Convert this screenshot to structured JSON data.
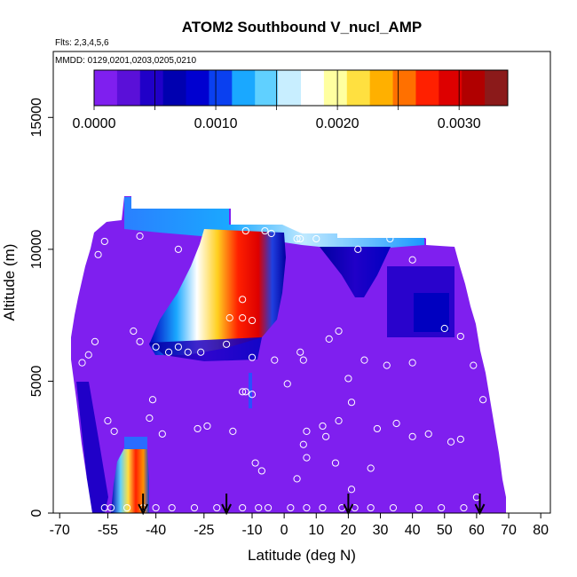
{
  "chart_data": {
    "type": "heatmap",
    "title": "ATOM2 Southbound V_nucl_AMP",
    "subtitle_flights": "Flts: 2,3,4,5,6",
    "subtitle_dates": "MMDD: 0129,0201,0203,0205,0210",
    "xlabel": "Latitude (deg N)",
    "ylabel": "Altitude (m)",
    "xlim": [
      -72,
      83
    ],
    "ylim": [
      0,
      17500
    ],
    "x_ticks": [
      -70,
      -55,
      -40,
      -25,
      -10,
      0,
      10,
      20,
      30,
      40,
      50,
      60,
      70,
      80
    ],
    "x_tick_labels": [
      "-70",
      "-55",
      "-40",
      "-25",
      "-10",
      "0",
      "10",
      "20",
      "30",
      "40",
      "50",
      "60",
      "70",
      "80"
    ],
    "y_ticks": [
      0,
      5000,
      10000,
      15000
    ],
    "y_tick_labels": [
      "0",
      "5000",
      "10000",
      "15000"
    ],
    "colorbar": {
      "min": 0.0,
      "max": 0.0034,
      "ticks": [
        0.0,
        0.001,
        0.002,
        0.003
      ],
      "tick_labels": [
        "0.0000",
        "0.0010",
        "0.0020",
        "0.0030"
      ],
      "colors": [
        "#7f1fef",
        "#5a10d8",
        "#2000c8",
        "#0000b0",
        "#0000d0",
        "#0a40f0",
        "#1aa8ff",
        "#60d0ff",
        "#c8eeff",
        "#ffffff",
        "#ffffa0",
        "#ffe040",
        "#ffb000",
        "#ff7000",
        "#ff2000",
        "#dd0000",
        "#b00000",
        "#8b1a1a"
      ]
    },
    "background_value": 2e-05,
    "features": [
      {
        "name": "southern-surface-plume",
        "x": [
          -50,
          -42
        ],
        "y": [
          0,
          2600
        ],
        "peak": 0.0031
      },
      {
        "name": "upper-tropospheric-plume",
        "x": [
          -30,
          -5
        ],
        "y": [
          6000,
          11200
        ],
        "peak": 0.0033
      },
      {
        "name": "upper-band",
        "x": [
          -42,
          45
        ],
        "y": [
          10000,
          11700
        ],
        "peak": 0.0011
      },
      {
        "name": "northern-dip",
        "x": [
          18,
          32
        ],
        "y": [
          8000,
          10500
        ],
        "peak": 0.0004
      },
      {
        "name": "northern-block",
        "x": [
          38,
          58
        ],
        "y": [
          6500,
          9500
        ],
        "peak": 0.0003
      }
    ],
    "flight_samples": [
      [
        -58,
        9800
      ],
      [
        -56,
        10300
      ],
      [
        -52,
        11600
      ],
      [
        -45,
        10500
      ],
      [
        -33,
        10000
      ],
      [
        -12,
        10700
      ],
      [
        -6,
        10700
      ],
      [
        -4,
        10600
      ],
      [
        4,
        10400
      ],
      [
        5,
        10400
      ],
      [
        10,
        10400
      ],
      [
        23,
        10000
      ],
      [
        33,
        10400
      ],
      [
        40,
        9600
      ],
      [
        45,
        10500
      ],
      [
        52,
        10300
      ],
      [
        -13,
        8100
      ],
      [
        -17,
        7400
      ],
      [
        -13,
        7400
      ],
      [
        -10,
        7300
      ],
      [
        -63,
        5700
      ],
      [
        -61,
        6000
      ],
      [
        -59,
        6500
      ],
      [
        -47,
        6900
      ],
      [
        -45,
        6500
      ],
      [
        -40,
        6300
      ],
      [
        -36,
        6100
      ],
      [
        -33,
        6300
      ],
      [
        -30,
        6100
      ],
      [
        -26,
        6100
      ],
      [
        -18,
        6400
      ],
      [
        -10,
        5900
      ],
      [
        -3,
        5800
      ],
      [
        5,
        6100
      ],
      [
        6,
        5800
      ],
      [
        14,
        6600
      ],
      [
        17,
        6900
      ],
      [
        20,
        5100
      ],
      [
        25,
        5800
      ],
      [
        32,
        5600
      ],
      [
        40,
        5700
      ],
      [
        50,
        7000
      ],
      [
        55,
        6700
      ],
      [
        59,
        5600
      ],
      [
        62,
        4300
      ],
      [
        -55,
        3500
      ],
      [
        -53,
        3100
      ],
      [
        -42,
        3600
      ],
      [
        -41,
        4300
      ],
      [
        -38,
        3000
      ],
      [
        -27,
        3200
      ],
      [
        -24,
        3300
      ],
      [
        -16,
        3100
      ],
      [
        -13,
        4600
      ],
      [
        -12,
        4600
      ],
      [
        -10,
        4500
      ],
      [
        1,
        4900
      ],
      [
        6,
        2600
      ],
      [
        7,
        3100
      ],
      [
        12,
        3300
      ],
      [
        13,
        2900
      ],
      [
        17,
        3500
      ],
      [
        21,
        4200
      ],
      [
        29,
        3200
      ],
      [
        35,
        3400
      ],
      [
        40,
        2900
      ],
      [
        45,
        3000
      ],
      [
        52,
        2700
      ],
      [
        55,
        2800
      ],
      [
        -9,
        1900
      ],
      [
        -7,
        1600
      ],
      [
        4,
        1300
      ],
      [
        7,
        2100
      ],
      [
        16,
        1900
      ],
      [
        21,
        900
      ],
      [
        27,
        1700
      ],
      [
        -56,
        200
      ],
      [
        -54,
        200
      ],
      [
        -49,
        200
      ],
      [
        -44,
        200
      ],
      [
        -40,
        200
      ],
      [
        -35,
        200
      ],
      [
        -28,
        200
      ],
      [
        -21,
        200
      ],
      [
        -13,
        200
      ],
      [
        -8,
        200
      ],
      [
        -5,
        200
      ],
      [
        2,
        200
      ],
      [
        7,
        200
      ],
      [
        12,
        200
      ],
      [
        18,
        200
      ],
      [
        22,
        200
      ],
      [
        27,
        200
      ],
      [
        34,
        200
      ],
      [
        42,
        200
      ],
      [
        49,
        200
      ],
      [
        56,
        200
      ],
      [
        60,
        600
      ],
      [
        71,
        600
      ]
    ],
    "arrows_latitude": [
      -44,
      -18,
      20,
      61
    ]
  }
}
